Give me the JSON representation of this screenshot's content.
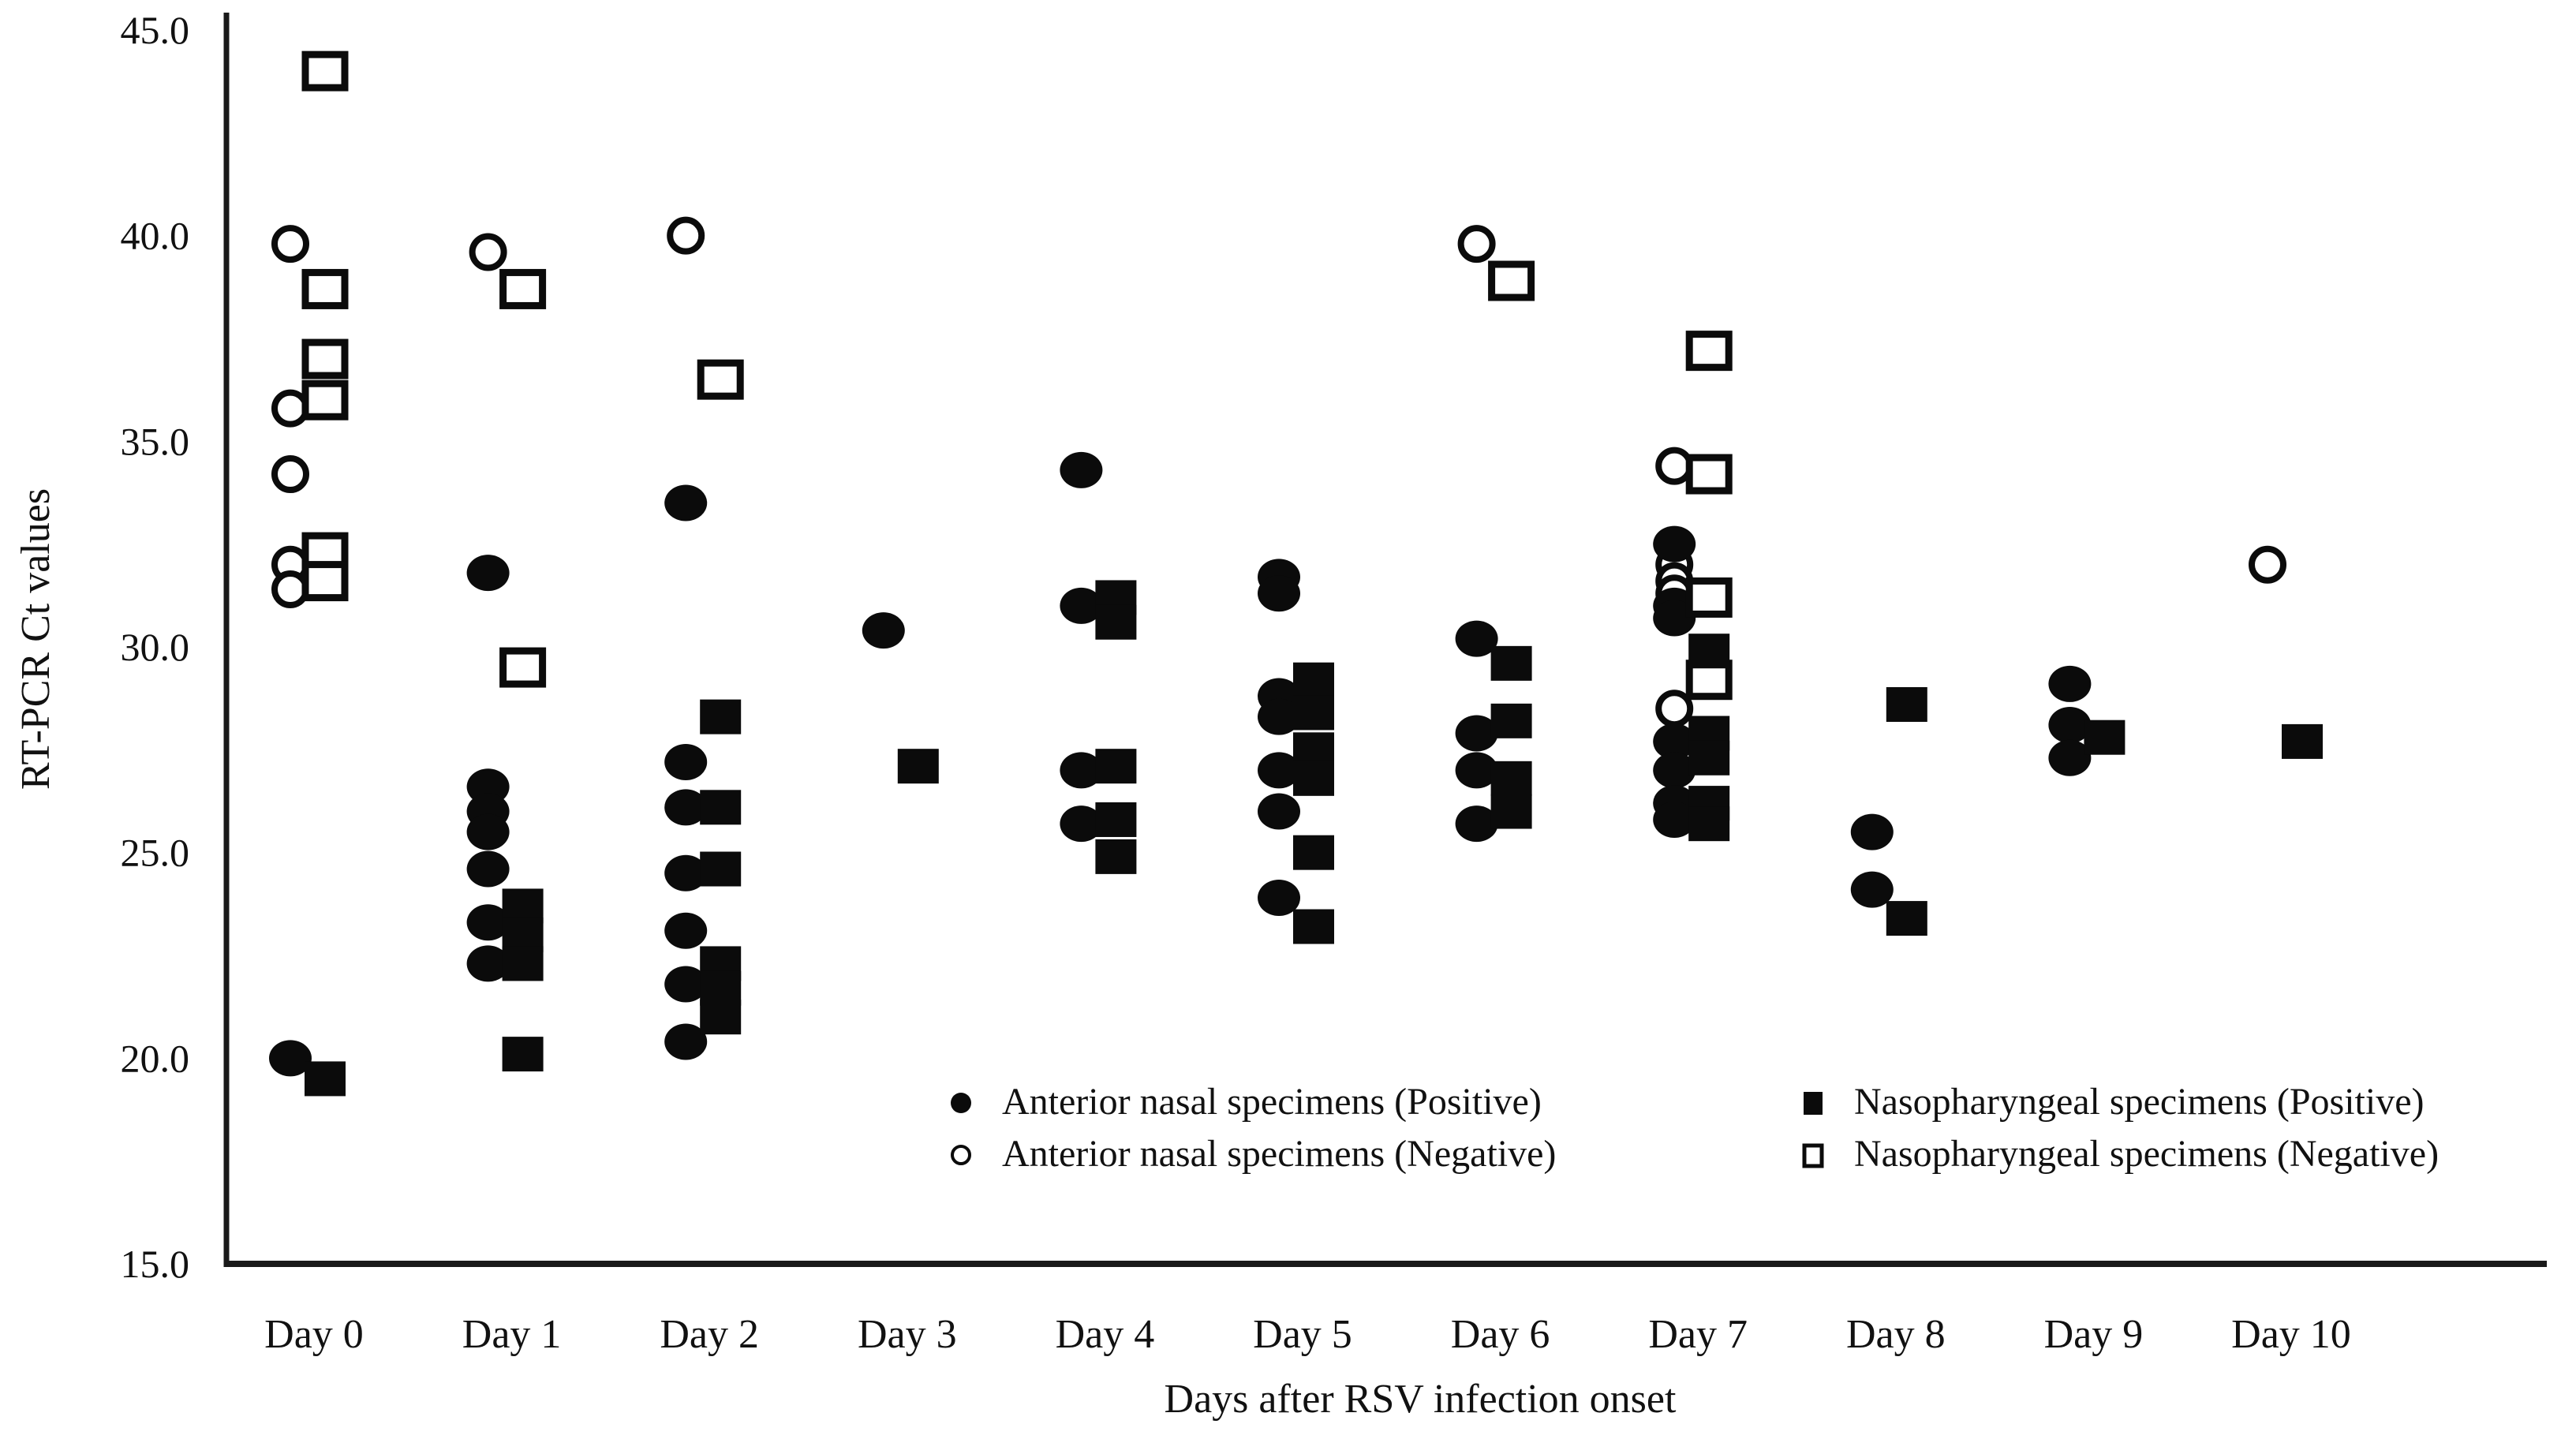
{
  "figure": {
    "marker_color": "#0b0b0b",
    "axis_color": "#1a1a1a",
    "background": "#ffffff"
  },
  "chart_data": {
    "type": "scatter",
    "title": "",
    "xlabel": "Days after RSV infection onset",
    "ylabel": "RT-PCR Ct values",
    "ylim": [
      15.0,
      45.0
    ],
    "ytick_values": [
      45,
      40,
      35,
      30,
      25,
      20,
      15
    ],
    "ytick_labels": [
      "45.0",
      "40.0",
      "35.0",
      "30.0",
      "25.0",
      "20.0",
      "15.0"
    ],
    "categories": [
      "Day 0",
      "Day 1",
      "Day 2",
      "Day 3",
      "Day 4",
      "Day 5",
      "Day 6",
      "Day 7",
      "Day 8",
      "Day 9",
      "Day 10"
    ],
    "grid": false,
    "legend_position": "inside-bottom",
    "series": [
      {
        "name": "Anterior nasal specimens (Positive)",
        "marker": "filled-circle",
        "points": [
          [
            0,
            20.0
          ],
          [
            1,
            31.8
          ],
          [
            1,
            26.6
          ],
          [
            1,
            26.0
          ],
          [
            1,
            25.5
          ],
          [
            1,
            24.6
          ],
          [
            1,
            23.3
          ],
          [
            1,
            22.3
          ],
          [
            2,
            33.5
          ],
          [
            2,
            27.2
          ],
          [
            2,
            26.1
          ],
          [
            2,
            24.5
          ],
          [
            2,
            23.1
          ],
          [
            2,
            21.8
          ],
          [
            2,
            20.4
          ],
          [
            3,
            30.4
          ],
          [
            4,
            34.3
          ],
          [
            4,
            31.0
          ],
          [
            4,
            27.0
          ],
          [
            4,
            25.7
          ],
          [
            5,
            31.7
          ],
          [
            5,
            31.3
          ],
          [
            5,
            28.8
          ],
          [
            5,
            28.3
          ],
          [
            5,
            27.0
          ],
          [
            5,
            26.0
          ],
          [
            5,
            23.9
          ],
          [
            6,
            30.2
          ],
          [
            6,
            27.9
          ],
          [
            6,
            27.0
          ],
          [
            6,
            25.7
          ],
          [
            7,
            32.5
          ],
          [
            7,
            31.0
          ],
          [
            7,
            30.7
          ],
          [
            7,
            27.7
          ],
          [
            7,
            27.0
          ],
          [
            7,
            26.2
          ],
          [
            7,
            25.8
          ],
          [
            8,
            25.5
          ],
          [
            8,
            24.1
          ],
          [
            9,
            29.1
          ],
          [
            9,
            28.1
          ],
          [
            9,
            27.3
          ]
        ]
      },
      {
        "name": "Anterior nasal specimens (Negative)",
        "marker": "open-circle",
        "points": [
          [
            0,
            39.8
          ],
          [
            0,
            35.8
          ],
          [
            0,
            34.2
          ],
          [
            0,
            32.0
          ],
          [
            0,
            31.4
          ],
          [
            1,
            39.6
          ],
          [
            2,
            40.0
          ],
          [
            6,
            39.8
          ],
          [
            7,
            34.4
          ],
          [
            7,
            32.0
          ],
          [
            7,
            31.6
          ],
          [
            7,
            31.3
          ],
          [
            7,
            28.5
          ],
          [
            10,
            32.0
          ]
        ]
      },
      {
        "name": "Nasopharyngeal specimens (Positive)",
        "marker": "filled-square",
        "points": [
          [
            0,
            19.5
          ],
          [
            1,
            23.7
          ],
          [
            1,
            23.0
          ],
          [
            1,
            22.3
          ],
          [
            1,
            20.1
          ],
          [
            2,
            28.3
          ],
          [
            2,
            26.1
          ],
          [
            2,
            24.6
          ],
          [
            2,
            22.3
          ],
          [
            2,
            21.7
          ],
          [
            2,
            21.0
          ],
          [
            3,
            27.1
          ],
          [
            4,
            31.2
          ],
          [
            4,
            30.6
          ],
          [
            4,
            27.1
          ],
          [
            4,
            25.8
          ],
          [
            4,
            24.9
          ],
          [
            5,
            29.2
          ],
          [
            5,
            28.4
          ],
          [
            5,
            27.5
          ],
          [
            5,
            26.8
          ],
          [
            5,
            25.0
          ],
          [
            5,
            23.2
          ],
          [
            6,
            29.6
          ],
          [
            6,
            28.2
          ],
          [
            6,
            26.8
          ],
          [
            6,
            26.0
          ],
          [
            7,
            29.9
          ],
          [
            7,
            27.9
          ],
          [
            7,
            27.3
          ],
          [
            7,
            26.2
          ],
          [
            7,
            25.7
          ],
          [
            8,
            28.6
          ],
          [
            8,
            23.4
          ],
          [
            9,
            27.8
          ],
          [
            10,
            27.7
          ]
        ]
      },
      {
        "name": "Nasopharyngeal specimens (Negative)",
        "marker": "open-square",
        "points": [
          [
            0,
            44.0
          ],
          [
            0,
            38.7
          ],
          [
            0,
            37.0
          ],
          [
            0,
            36.0
          ],
          [
            0,
            32.3
          ],
          [
            0,
            31.6
          ],
          [
            1,
            38.7
          ],
          [
            1,
            29.5
          ],
          [
            2,
            36.5
          ],
          [
            6,
            38.9
          ],
          [
            7,
            37.2
          ],
          [
            7,
            34.2
          ],
          [
            7,
            31.2
          ],
          [
            7,
            29.2
          ]
        ]
      }
    ]
  },
  "legend": {
    "items": [
      {
        "marker": "filled-circle",
        "label": "Anterior nasal specimens (Positive)"
      },
      {
        "marker": "open-circle",
        "label": "Anterior nasal specimens (Negative)"
      },
      {
        "marker": "filled-square",
        "label": "Nasopharyngeal specimens (Positive)"
      },
      {
        "marker": "open-square",
        "label": "Nasopharyngeal specimens (Negative)"
      }
    ]
  }
}
